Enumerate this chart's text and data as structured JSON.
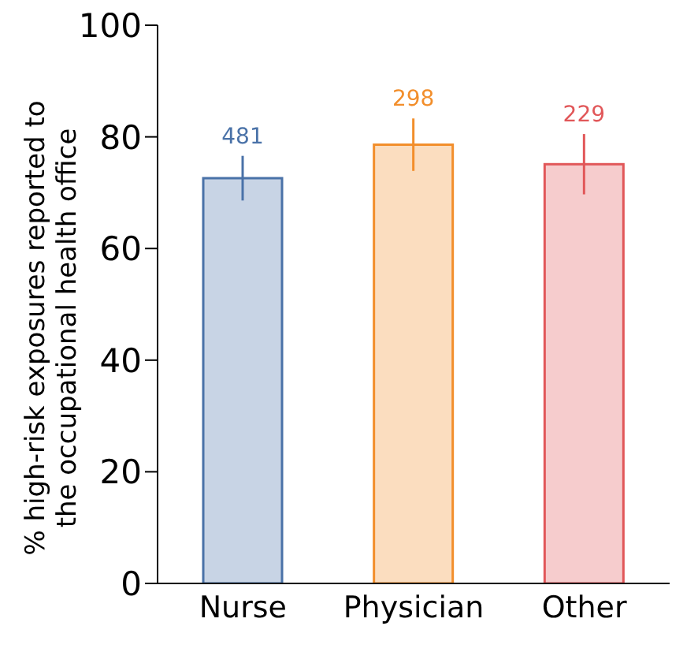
{
  "chart_data": {
    "type": "bar",
    "ylabel": "% high-risk exposures reported to the occupational health office",
    "categories": [
      "Nurse",
      "Physician",
      "Other"
    ],
    "values": [
      72.6,
      78.6,
      75.1
    ],
    "errors": [
      4,
      4.7,
      5.4
    ],
    "colors": [
      "#4a72a8",
      "#f28e2b",
      "#e15759"
    ],
    "annotations": [
      "481",
      "298",
      "229"
    ],
    "ylim": [
      0,
      100
    ],
    "yticks": [
      0,
      20,
      40,
      60,
      80,
      100
    ],
    "grid": false,
    "legend": false
  }
}
